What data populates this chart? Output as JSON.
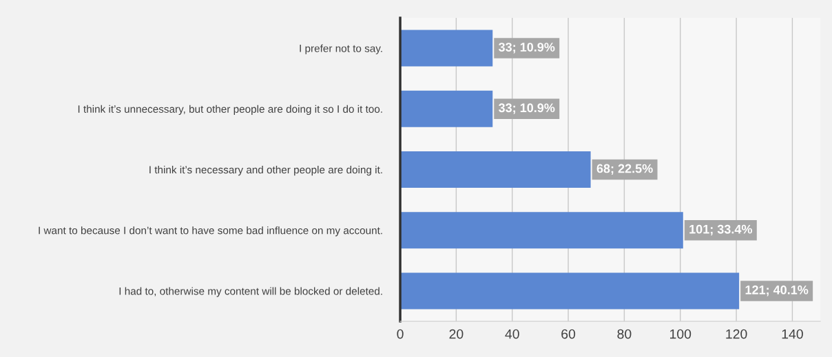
{
  "chart_data": {
    "type": "bar",
    "orientation": "horizontal",
    "categories": [
      "I prefer not to say.",
      "I think it’s unnecessary, but other people are doing it so I do it too.",
      "I think it’s necessary and other people are doing it.",
      "I want to because I don’t want to have some bad influence on my account.",
      "I had to, otherwise my content will be blocked or deleted."
    ],
    "values": [
      33,
      33,
      68,
      101,
      121
    ],
    "value_labels": [
      "33; 10.9%",
      "33; 10.9%",
      "68; 22.5%",
      "101; 33.4%",
      "121; 40.1%"
    ],
    "color": "#5b87d2",
    "xlim": [
      0,
      150
    ],
    "xticks": [
      0,
      20,
      40,
      60,
      80,
      100,
      120,
      140
    ],
    "grid": "x"
  }
}
